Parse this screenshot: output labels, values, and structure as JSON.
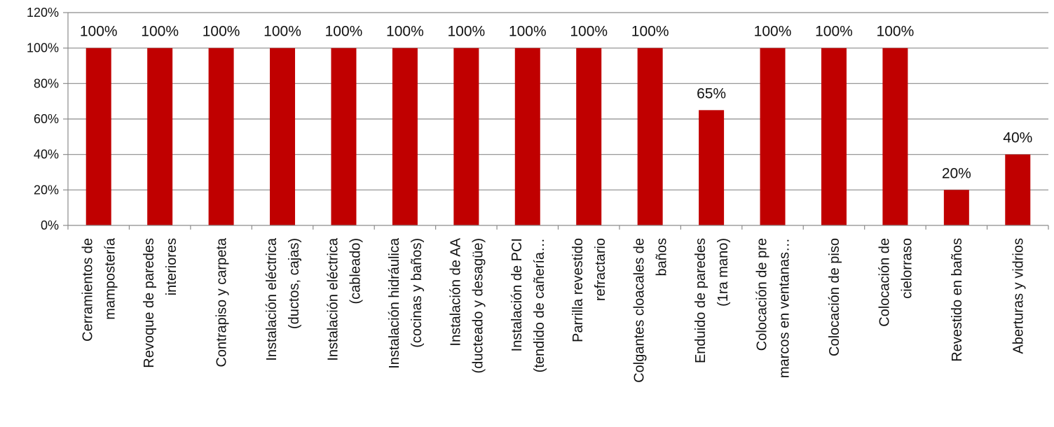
{
  "chart_data": {
    "type": "bar",
    "title": "",
    "xlabel": "",
    "ylabel": "",
    "ylim": [
      0,
      120
    ],
    "y_tick_step": 20,
    "y_tick_suffix": "%",
    "grid": true,
    "legend": "none",
    "colors": {
      "bar": "#c00000",
      "grid": "#8c8c8c"
    },
    "categories": [
      [
        "Cerramientos de",
        "mampostería"
      ],
      [
        "Revoque de paredes",
        "interiores"
      ],
      [
        "Contrapiso y carpeta"
      ],
      [
        "Instalación eléctrica",
        "(ductos, cajas)"
      ],
      [
        "Instalación eléctrica",
        "(cableado)"
      ],
      [
        "Instalación hidráulica",
        "(cocinas y baños)"
      ],
      [
        "Instalación de AA",
        "(ducteado y desagüe)"
      ],
      [
        "Instalación de PCI",
        "(tendido de cañería…"
      ],
      [
        "Parrilla revestido",
        "refractario"
      ],
      [
        "Colgantes cloacales de",
        "baños"
      ],
      [
        "Enduido de paredes",
        "(1ra mano)"
      ],
      [
        "Colocación de pre",
        "marcos en ventanas…"
      ],
      [
        "Colocación de piso"
      ],
      [
        "Colocación de",
        "cielorraso"
      ],
      [
        "Revestido en baños"
      ],
      [
        "Aberturas y vidrios"
      ]
    ],
    "values": [
      100,
      100,
      100,
      100,
      100,
      100,
      100,
      100,
      100,
      100,
      65,
      100,
      100,
      100,
      20,
      40
    ],
    "data_labels": [
      "100%",
      "100%",
      "100%",
      "100%",
      "100%",
      "100%",
      "100%",
      "100%",
      "100%",
      "100%",
      "65%",
      "100%",
      "100%",
      "100%",
      "20%",
      "40%"
    ],
    "label_visible": [
      true,
      true,
      true,
      true,
      true,
      true,
      true,
      true,
      true,
      true,
      true,
      true,
      true,
      true,
      true,
      true
    ]
  }
}
